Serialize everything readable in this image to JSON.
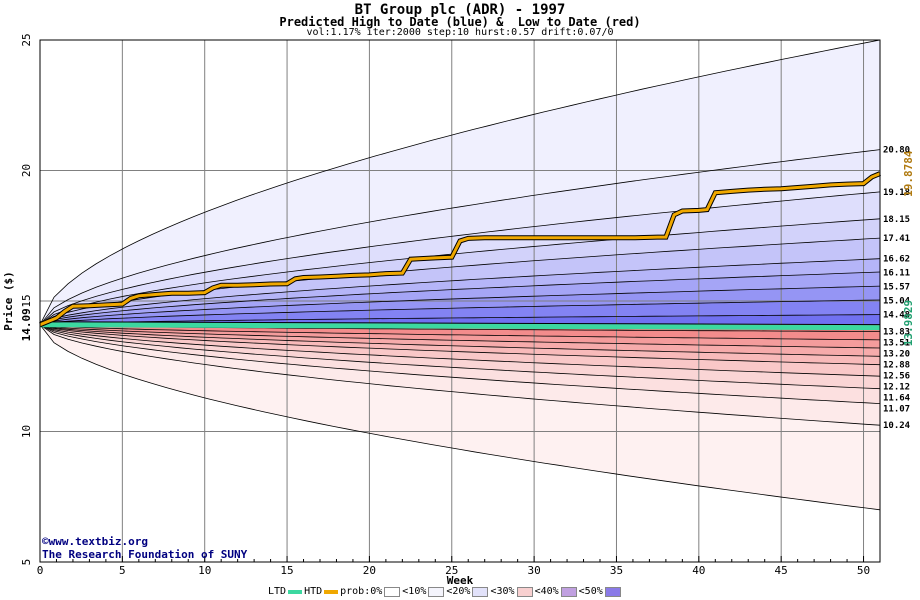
{
  "title": "BT Group plc (ADR) - 1997",
  "subtitle": "Predicted High to Date (blue) &  Low to Date (red)",
  "params": "vol:1.17% iter:2000 step:10 hurst:0.57 drift:0.07/0",
  "credit": {
    "line1": "©www.textbiz.org",
    "line2": "The Research Foundation of SUNY"
  },
  "colors": {
    "blue_band": "#6a6af0",
    "red_band": "#f07474",
    "htd_line": "#f0a800",
    "ltd_line": "#3cd8a0",
    "left_label": "#000000",
    "right_high_label": "#b07a10",
    "right_low_label": "#20a070"
  },
  "legend": [
    {
      "label": "LTD",
      "kind": "line",
      "color": "#3cd8a0"
    },
    {
      "label": "HTD",
      "kind": "line",
      "color": "#f0a800"
    },
    {
      "label": "prob:0%",
      "kind": "swatch",
      "color": "#ffffff"
    },
    {
      "label": "<10%",
      "kind": "swatch",
      "color": "#f4f4fc"
    },
    {
      "label": "<20%",
      "kind": "swatch",
      "color": "#e2e2fa"
    },
    {
      "label": "<30%",
      "kind": "swatch",
      "color": "#f8d0d0"
    },
    {
      "label": "<40%",
      "kind": "swatch",
      "color": "#c0a0e0"
    },
    {
      "label": "<50%",
      "kind": "swatch",
      "color": "#8a7ae8"
    }
  ],
  "chart_data": {
    "type": "line",
    "title": "BT Group plc (ADR) - 1997",
    "xlabel": "Week",
    "ylabel": "Price ($)",
    "xlim": [
      0,
      51
    ],
    "ylim": [
      5,
      25
    ],
    "x_ticks": [
      0,
      5,
      10,
      15,
      20,
      25,
      30,
      35,
      40,
      45,
      50
    ],
    "y_ticks": [
      5,
      10,
      15,
      20,
      25
    ],
    "grid": true,
    "start_price": 14.09,
    "start_label": "14.09",
    "high_quantiles": [
      "20.80",
      "19.18",
      "18.15",
      "17.41",
      "16.62",
      "16.11",
      "15.57",
      "15.04",
      "14.48"
    ],
    "low_quantiles": [
      "13.83",
      "13.51",
      "13.20",
      "12.88",
      "12.56",
      "12.12",
      "11.64",
      "11.07",
      "10.24"
    ],
    "high_outer_end": 25,
    "low_outer_end": 7.0,
    "htd_end_label": "19.8784",
    "ltd_end_label": "13.9829",
    "htd_series": {
      "name": "HTD",
      "x": [
        0,
        1,
        1.5,
        2,
        3,
        4,
        5,
        5.5,
        6,
        7,
        8,
        9,
        10,
        10.5,
        11,
        12,
        13,
        14,
        15,
        15.5,
        16,
        17,
        18,
        19,
        20,
        21,
        22,
        22.5,
        23,
        24,
        25,
        25.5,
        26,
        27,
        30,
        33,
        36,
        37.5,
        38,
        38.5,
        39,
        40,
        40.5,
        41,
        42,
        43,
        44,
        45,
        46,
        47,
        48,
        49,
        50,
        50.5,
        51
      ],
      "y": [
        14.09,
        14.35,
        14.6,
        14.8,
        14.82,
        14.85,
        14.88,
        15.1,
        15.2,
        15.25,
        15.3,
        15.3,
        15.32,
        15.5,
        15.6,
        15.6,
        15.62,
        15.65,
        15.66,
        15.85,
        15.9,
        15.92,
        15.95,
        15.98,
        16.0,
        16.05,
        16.07,
        16.6,
        16.62,
        16.65,
        16.68,
        17.3,
        17.4,
        17.42,
        17.42,
        17.42,
        17.42,
        17.45,
        17.45,
        18.3,
        18.45,
        18.47,
        18.5,
        19.15,
        19.2,
        19.25,
        19.28,
        19.3,
        19.35,
        19.4,
        19.45,
        19.48,
        19.5,
        19.75,
        19.88
      ]
    },
    "ltd_series": {
      "name": "LTD",
      "x": [
        0,
        51
      ],
      "y": [
        14.09,
        13.98
      ]
    }
  }
}
